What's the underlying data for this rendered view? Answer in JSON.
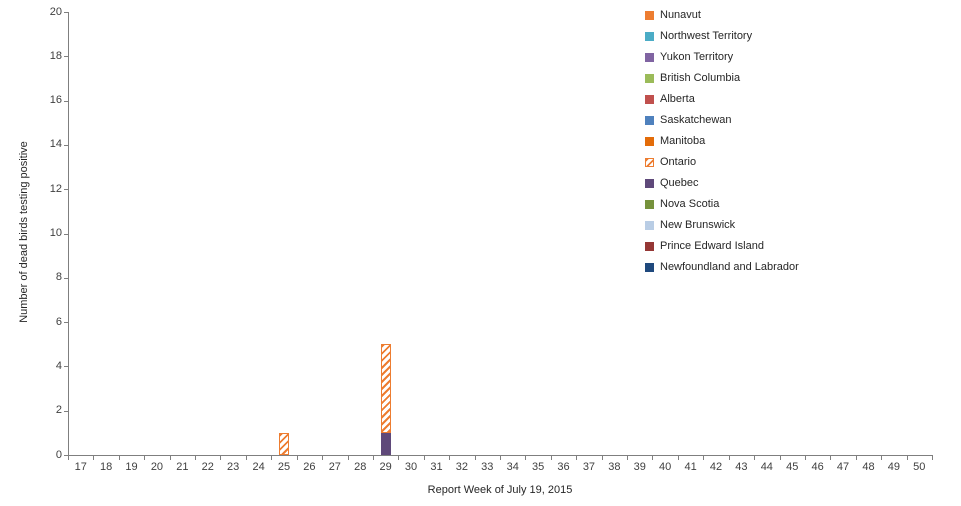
{
  "chart_data": {
    "type": "bar",
    "stacked": true,
    "title": "",
    "xlabel": "Report Week of July 19, 2015",
    "ylabel": "Number of dead birds testing positive",
    "x": [
      17,
      18,
      19,
      20,
      21,
      22,
      23,
      24,
      25,
      26,
      27,
      28,
      29,
      30,
      31,
      32,
      33,
      34,
      35,
      36,
      37,
      38,
      39,
      40,
      41,
      42,
      43,
      44,
      45,
      46,
      47,
      48,
      49,
      50
    ],
    "ylim": [
      0,
      20
    ],
    "ytick_step": 2,
    "grid": false,
    "legend_position": "top-right",
    "series": [
      {
        "name": "Nunavut",
        "color": "#ED7D31",
        "pattern": "solid",
        "values_by_week": {}
      },
      {
        "name": "Northwest Territory",
        "color": "#4BACC6",
        "pattern": "solid",
        "values_by_week": {}
      },
      {
        "name": "Yukon Territory",
        "color": "#8064A2",
        "pattern": "solid",
        "values_by_week": {}
      },
      {
        "name": "British Columbia",
        "color": "#9BBB59",
        "pattern": "solid",
        "values_by_week": {}
      },
      {
        "name": "Alberta",
        "color": "#C0504D",
        "pattern": "solid",
        "values_by_week": {}
      },
      {
        "name": "Saskatchewan",
        "color": "#4F81BD",
        "pattern": "solid",
        "values_by_week": {}
      },
      {
        "name": "Manitoba",
        "color": "#E36C09",
        "pattern": "solid",
        "values_by_week": {}
      },
      {
        "name": "Ontario",
        "color": "#ED7D31",
        "pattern": "hatch",
        "values_by_week": {
          "25": 1,
          "29": 4
        }
      },
      {
        "name": "Quebec",
        "color": "#5F497A",
        "pattern": "solid",
        "values_by_week": {
          "29": 1
        }
      },
      {
        "name": "Nova Scotia",
        "color": "#76923C",
        "pattern": "solid",
        "values_by_week": {}
      },
      {
        "name": "New Brunswick",
        "color": "#B9CDE5",
        "pattern": "solid",
        "values_by_week": {}
      },
      {
        "name": "Prince Edward Island",
        "color": "#953735",
        "pattern": "solid",
        "values_by_week": {}
      },
      {
        "name": "Newfoundland and Labrador",
        "color": "#1F497D",
        "pattern": "solid",
        "values_by_week": {}
      }
    ]
  }
}
